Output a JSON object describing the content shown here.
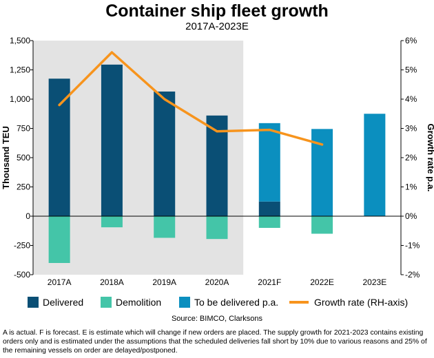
{
  "chart_data": {
    "type": "bar",
    "title": "Container ship fleet growth",
    "subtitle": "2017A-2023E",
    "categories": [
      "2017A",
      "2018A",
      "2019A",
      "2020A",
      "2021F",
      "2022E",
      "2023E"
    ],
    "series": [
      {
        "name": "Delivered",
        "kind": "bar",
        "axis": "left",
        "color": "#0a4f75",
        "values": [
          1175,
          1295,
          1065,
          860,
          125,
          null,
          null
        ]
      },
      {
        "name": "Demolition",
        "kind": "bar",
        "axis": "left",
        "color": "#44c5a8",
        "values": [
          -400,
          -95,
          -185,
          -195,
          -100,
          -150,
          null
        ]
      },
      {
        "name": "To be delivered p.a.",
        "kind": "bar",
        "axis": "left",
        "color": "#0b8fbf",
        "values": [
          null,
          null,
          null,
          null,
          670,
          745,
          875
        ]
      },
      {
        "name": "Growth rate (RH-axis)",
        "kind": "line",
        "axis": "right",
        "color": "#f7941d",
        "values": [
          3.8,
          5.6,
          4.0,
          2.9,
          2.95,
          2.45,
          null
        ]
      }
    ],
    "ylabel": "Thousand TEU",
    "y2label": "Growth rate p.a.",
    "ylim": [
      -500,
      1500
    ],
    "y2lim": [
      -2,
      6
    ],
    "yticks": [
      "1,500",
      "1,250",
      "1,000",
      "750",
      "500",
      "250",
      "0",
      "-250",
      "-500"
    ],
    "y2ticks": [
      "6%",
      "5%",
      "4%",
      "3%",
      "2%",
      "1%",
      "0%",
      "-1%",
      "-2%"
    ],
    "actual_period_shaded": [
      "2017A",
      "2020A"
    ],
    "source": "Source: BIMCO, Clarksons",
    "note": "A is actual. F is forecast. E is estimate which will change if new orders are placed. The supply growth for 2021-2023 contains existing orders only and is estimated under the assumptions that the scheduled deliveries fall short by 10% due to various reasons and 25% of the remaining vessels on order are delayed/postponed.",
    "colors": {
      "shade": "#e3e3e3",
      "axis": "#000000"
    }
  }
}
